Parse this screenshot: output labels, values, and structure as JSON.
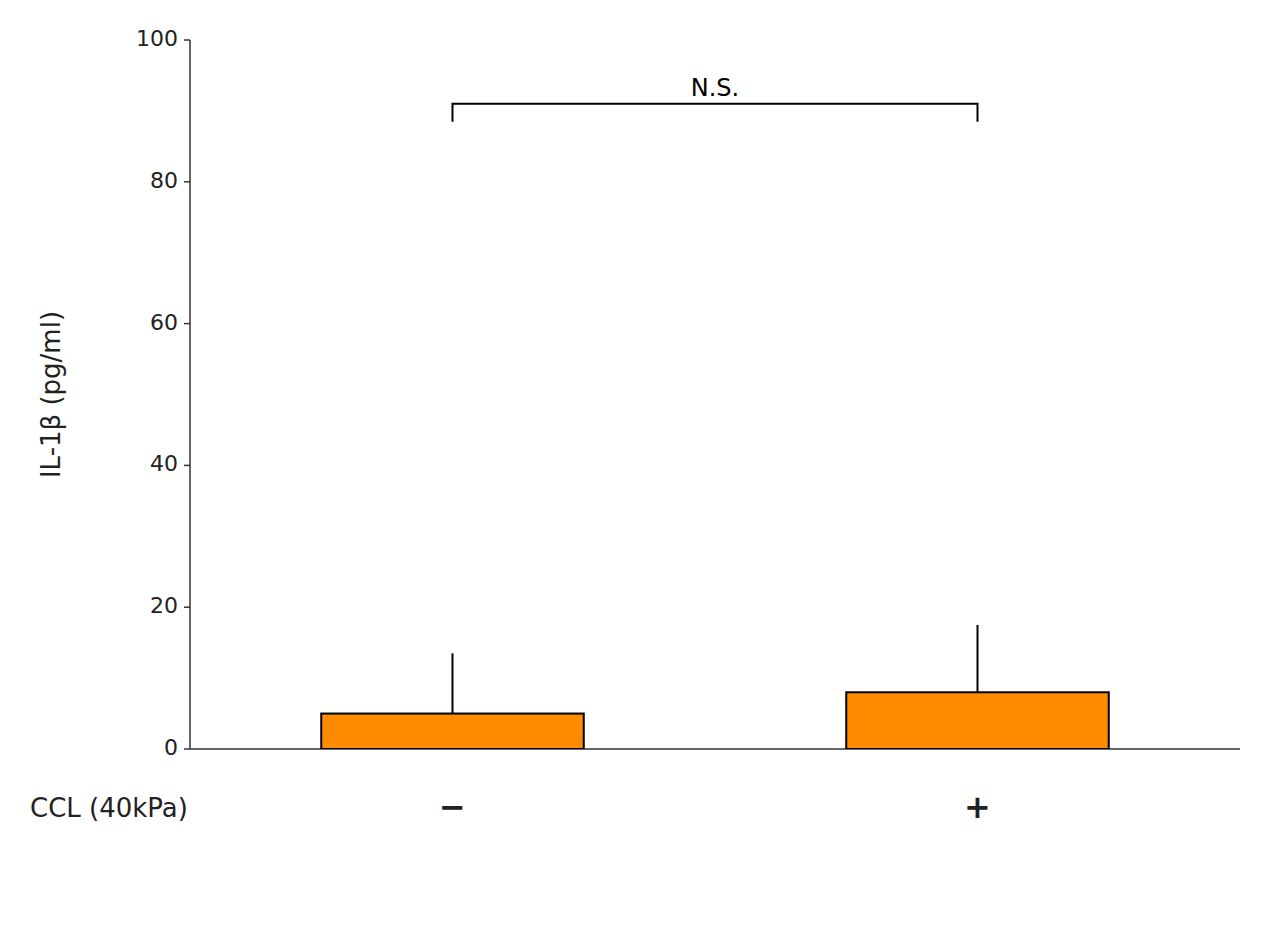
{
  "chart_data": {
    "type": "bar",
    "categories": [
      "−",
      "+"
    ],
    "values": [
      5.0,
      8.0
    ],
    "errors": [
      8.5,
      9.5
    ],
    "color": "#FF8C00",
    "ylabel": "IL-1β (pg/ml)",
    "xlabel": "CCL (40kPa)",
    "ylim": [
      0,
      100
    ],
    "yticks": [
      0,
      20,
      40,
      60,
      80,
      100
    ],
    "annotations": [
      {
        "text": "N.S.",
        "y": 91
      }
    ],
    "grid": false
  }
}
